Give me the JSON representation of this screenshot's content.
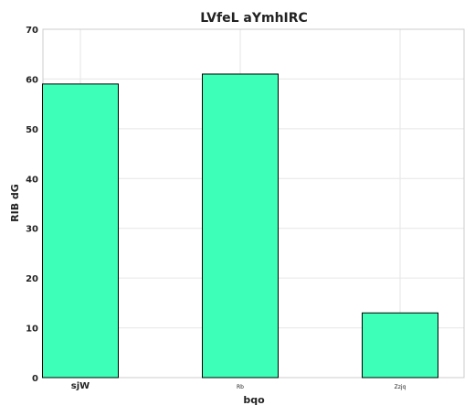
{
  "chart_data": {
    "type": "bar",
    "title": "LVfeL aYmhIRC",
    "xlabel": "bqo",
    "ylabel": "RIB dG",
    "categories": [
      "sjW",
      "Rb",
      "Zzjq"
    ],
    "values": [
      59,
      61,
      13
    ],
    "ylim": [
      0,
      70
    ],
    "yticks": [
      0,
      10,
      20,
      30,
      40,
      50,
      60,
      70
    ],
    "grid": true,
    "bar_color": "#3dffb8",
    "bar_edge_color": "#000000"
  }
}
